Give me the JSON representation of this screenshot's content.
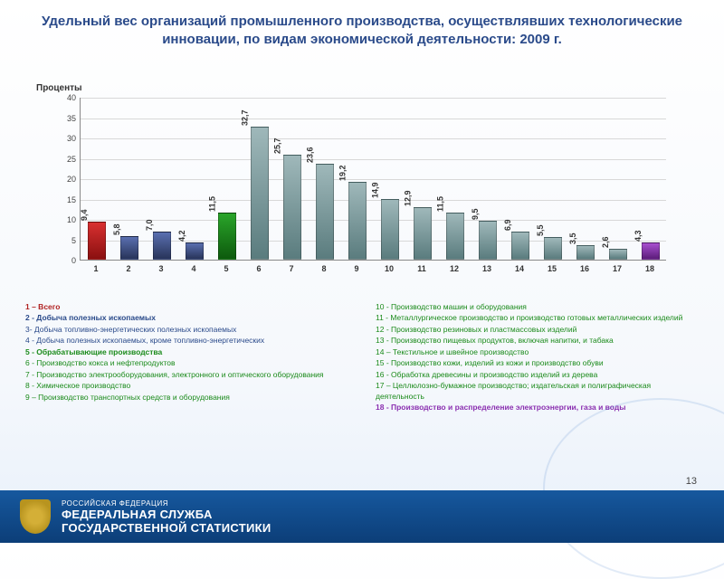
{
  "title": "Удельный вес организаций промышленного производства, осуществлявших технологические инновации, по видам экономической деятельности: 2009 г.",
  "ylabel": "Проценты",
  "chart": {
    "type": "bar",
    "ylim": [
      0,
      40
    ],
    "ytick_step": 5,
    "grid_color": "#d8d8d8",
    "axis_color": "#888888",
    "background_color": "#ffffff",
    "bar_width": 0.55,
    "categories": [
      "1",
      "2",
      "3",
      "4",
      "5",
      "6",
      "7",
      "8",
      "9",
      "10",
      "11",
      "12",
      "13",
      "14",
      "15",
      "16",
      "17",
      "18"
    ],
    "values": [
      9.4,
      5.8,
      7.0,
      4.2,
      11.5,
      32.7,
      25.7,
      23.6,
      19.2,
      14.9,
      12.9,
      11.5,
      9.5,
      6.9,
      5.5,
      3.5,
      2.6,
      4.3
    ],
    "value_labels": [
      "9,4",
      "5,8",
      "7,0",
      "4,2",
      "11,5",
      "32,7",
      "25,7",
      "23,6",
      "19,2",
      "14,9",
      "12,9",
      "11,5",
      "9,5",
      "6,9",
      "5,5",
      "3,5",
      "2,6",
      "4,3"
    ],
    "bar_colors": [
      [
        "#d93030",
        "#8a1010"
      ],
      [
        "#5a6fb0",
        "#28345a"
      ],
      [
        "#5a6fb0",
        "#28345a"
      ],
      [
        "#5a6fb0",
        "#28345a"
      ],
      [
        "#2aa52a",
        "#0d5a0d"
      ],
      [
        "#9fb8ba",
        "#5a7c7e"
      ],
      [
        "#9fb8ba",
        "#5a7c7e"
      ],
      [
        "#9fb8ba",
        "#5a7c7e"
      ],
      [
        "#9fb8ba",
        "#5a7c7e"
      ],
      [
        "#9fb8ba",
        "#5a7c7e"
      ],
      [
        "#9fb8ba",
        "#5a7c7e"
      ],
      [
        "#9fb8ba",
        "#5a7c7e"
      ],
      [
        "#9fb8ba",
        "#5a7c7e"
      ],
      [
        "#9fb8ba",
        "#5a7c7e"
      ],
      [
        "#9fb8ba",
        "#5a7c7e"
      ],
      [
        "#9fb8ba",
        "#5a7c7e"
      ],
      [
        "#9fb8ba",
        "#5a7c7e"
      ],
      [
        "#a84fd0",
        "#5c1c7a"
      ]
    ]
  },
  "legend_left": [
    {
      "text": "1 – Всего",
      "color": "#b02020",
      "bold": true
    },
    {
      "text": "2 - Добыча полезных ископаемых",
      "color": "#2a4a8a",
      "bold": true
    },
    {
      "text": "3- Добыча топливно-энергетических полезных ископаемых",
      "color": "#2a4a8a",
      "bold": false
    },
    {
      "text": "4 - Добыча полезных ископаемых, кроме топливно-энергетических",
      "color": "#2a4a8a",
      "bold": false
    },
    {
      "text": "5 - Обрабатывающие производства",
      "color": "#1a8a1a",
      "bold": true
    },
    {
      "text": "6 - Производство кокса и нефтепродуктов",
      "color": "#1a8a1a",
      "bold": false
    },
    {
      "text": "7 - Производство электрооборудования, электронного и оптического оборудования",
      "color": "#1a8a1a",
      "bold": false
    },
    {
      "text": "8 - Химическое производство",
      "color": "#1a8a1a",
      "bold": false
    },
    {
      "text": "9 – Производство транспортных средств и оборудования",
      "color": "#1a8a1a",
      "bold": false
    }
  ],
  "legend_right": [
    {
      "text": "10 - Производство машин и оборудования",
      "color": "#1a8a1a",
      "bold": false
    },
    {
      "text": "11 - Металлургическое производство и производство готовых металлических изделий",
      "color": "#1a8a1a",
      "bold": false
    },
    {
      "text": "12 - Производство резиновых и пластмассовых изделий",
      "color": "#1a8a1a",
      "bold": false
    },
    {
      "text": "13 - Производство пищевых продуктов, включая напитки, и табака",
      "color": "#1a8a1a",
      "bold": false
    },
    {
      "text": "14 – Текстильное и швейное производство",
      "color": "#1a8a1a",
      "bold": false
    },
    {
      "text": "15 - Производство кожи, изделий из кожи и производство обуви",
      "color": "#1a8a1a",
      "bold": false
    },
    {
      "text": "16 - Обработка древесины и производство изделий из дерева",
      "color": "#1a8a1a",
      "bold": false
    },
    {
      "text": "17 – Целлюлозно-бумажное производство; издательская и полиграфическая деятельность",
      "color": "#1a8a1a",
      "bold": false
    },
    {
      "text": "18 - Производство и распределение электроэнергии, газа и воды",
      "color": "#8a2fb0",
      "bold": true
    }
  ],
  "footer": {
    "line1": "РОССИЙСКАЯ ФЕДЕРАЦИЯ",
    "line2": "ФЕДЕРАЛЬНАЯ СЛУЖБА",
    "line3": "ГОСУДАРСТВЕННОЙ СТАТИСТИКИ"
  },
  "page_number": "13"
}
